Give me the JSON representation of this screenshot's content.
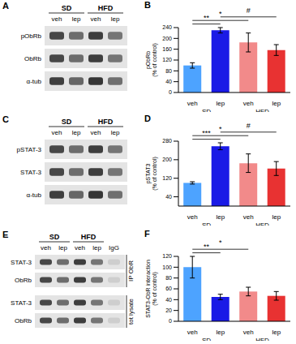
{
  "chart_data": [
    {
      "type": "bar",
      "title": "B",
      "ylabel": "pObRb (% of control)",
      "categories": [
        "veh",
        "lep",
        "veh",
        "lep"
      ],
      "groups": [
        "SD",
        "HFD"
      ],
      "values": [
        100,
        230,
        185,
        157
      ],
      "errors": [
        10,
        10,
        35,
        20
      ],
      "colors": [
        "#4da3ff",
        "#1a1ae6",
        "#f28a8a",
        "#e83232"
      ],
      "ylim": [
        0,
        240
      ],
      "yticks": [
        0,
        40,
        80,
        120,
        160,
        200,
        240
      ],
      "annotations": [
        {
          "text": "**",
          "from": 0,
          "to": 1
        },
        {
          "text": "*",
          "from": 0,
          "to": 2
        },
        {
          "text": "#",
          "from": 1,
          "to": 3
        }
      ]
    },
    {
      "type": "bar",
      "title": "D",
      "ylabel": "pSTAT3 (% of control)",
      "categories": [
        "veh",
        "lep",
        "veh",
        "lep"
      ],
      "groups": [
        "SD",
        "HFD"
      ],
      "values": [
        100,
        258,
        185,
        162
      ],
      "errors": [
        5,
        15,
        40,
        30
      ],
      "colors": [
        "#4da3ff",
        "#1a1ae6",
        "#f28a8a",
        "#e83232"
      ],
      "ylim": [
        0,
        280
      ],
      "yticks": [
        0,
        40,
        80,
        120,
        160,
        200,
        240,
        280
      ],
      "annotations": [
        {
          "text": "***",
          "from": 0,
          "to": 1
        },
        {
          "text": "*",
          "from": 0,
          "to": 2
        },
        {
          "text": "#",
          "from": 1,
          "to": 3
        }
      ]
    },
    {
      "type": "bar",
      "title": "F",
      "ylabel": "STAT3-ObR interaction (% of control)",
      "categories": [
        "veh",
        "lep",
        "veh",
        "lep"
      ],
      "groups": [
        "SD",
        "HFD"
      ],
      "values": [
        100,
        45,
        55,
        47
      ],
      "errors": [
        20,
        5,
        8,
        8
      ],
      "colors": [
        "#4da3ff",
        "#1a1ae6",
        "#f28a8a",
        "#e83232"
      ],
      "ylim": [
        0,
        120
      ],
      "yticks": [
        0,
        20,
        40,
        60,
        80,
        100,
        120
      ],
      "annotations": [
        {
          "text": "**",
          "from": 0,
          "to": 1
        },
        {
          "text": "*",
          "from": 0,
          "to": 2
        }
      ]
    }
  ],
  "blots": [
    {
      "panel": "A",
      "groups": [
        "SD",
        "HFD"
      ],
      "lanes": [
        "veh",
        "lep",
        "veh",
        "lep"
      ],
      "rows": [
        "pObRb",
        "ObRb",
        "α-tub"
      ]
    },
    {
      "panel": "C",
      "groups": [
        "SD",
        "HFD"
      ],
      "lanes": [
        "veh",
        "lep",
        "veh",
        "lep"
      ],
      "rows": [
        "pSTAT-3",
        "STAT-3",
        "α-tub"
      ]
    },
    {
      "panel": "E",
      "groups": [
        "SD",
        "HFD"
      ],
      "lanes": [
        "veh",
        "lep",
        "veh",
        "lep",
        "IgG"
      ],
      "row_sets": [
        {
          "label": "IP ObR",
          "rows": [
            "STAT-3",
            "ObRb"
          ]
        },
        {
          "label": "tot lysate",
          "rows": [
            "STAT-3",
            "ObRb"
          ]
        }
      ]
    }
  ]
}
